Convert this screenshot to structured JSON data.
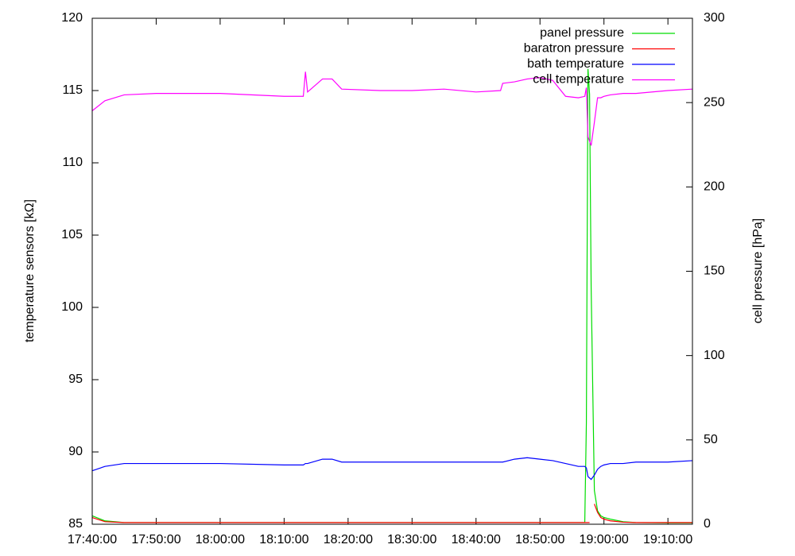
{
  "chart_data": {
    "type": "line",
    "y_label": "temperature sensors [kΩ]",
    "y2_label": "cell pressure [hPa]",
    "x": [
      "17:40:00",
      "17:42:00",
      "17:45:00",
      "17:50:00",
      "18:00:00",
      "18:10:00",
      "18:13:00",
      "18:13:20",
      "18:13:40",
      "18:16:00",
      "18:17:30",
      "18:19:00",
      "18:25:00",
      "18:30:00",
      "18:35:00",
      "18:40:00",
      "18:43:50",
      "18:44:10",
      "18:46:00",
      "18:48:00",
      "18:50:00",
      "18:52:00",
      "18:54:00",
      "18:56:00",
      "18:57:00",
      "18:57:15",
      "18:57:30",
      "18:57:45",
      "18:58:00",
      "18:58:30",
      "18:59:00",
      "18:59:30",
      "19:00:00",
      "19:01:00",
      "19:03:00",
      "19:05:00",
      "19:10:00",
      "19:13:50"
    ],
    "xlim": [
      "17:40:00",
      "19:13:50"
    ],
    "xticks": [
      "17:40:00",
      "17:50:00",
      "18:00:00",
      "18:10:00",
      "18:20:00",
      "18:30:00",
      "18:40:00",
      "18:50:00",
      "19:00:00",
      "19:10:00"
    ],
    "ylim": [
      85,
      120
    ],
    "yticks": [
      85,
      90,
      95,
      100,
      105,
      110,
      115,
      120
    ],
    "y2lim": [
      0,
      300
    ],
    "y2ticks": [
      0,
      50,
      100,
      150,
      200,
      250,
      300
    ],
    "legend": "top-right",
    "series": [
      {
        "name": "panel pressure",
        "color": "#00dd00",
        "axis": "y2",
        "values": [
          5,
          2,
          1,
          1,
          1,
          1,
          1,
          1,
          1,
          1,
          1,
          1,
          1,
          1,
          1,
          1,
          1,
          1,
          1,
          1,
          1,
          1,
          1,
          1,
          1,
          60,
          270,
          255,
          140,
          20,
          8,
          5,
          4,
          3,
          1.5,
          1,
          0.8,
          0.8
        ]
      },
      {
        "name": "baratron pressure",
        "color": "#ff0000",
        "axis": "y2",
        "values": [
          4,
          1.5,
          1,
          1,
          1,
          1,
          1,
          1,
          1,
          1,
          1,
          1,
          1,
          1,
          1,
          1,
          1,
          1,
          1,
          1,
          1,
          1,
          1,
          1,
          1,
          1,
          1,
          1,
          null,
          12,
          7,
          4,
          3,
          2,
          1.2,
          1,
          1,
          1
        ]
      },
      {
        "name": "bath temperature",
        "color": "#0000ff",
        "values": [
          88.7,
          89.0,
          89.2,
          89.2,
          89.2,
          89.1,
          89.1,
          89.2,
          89.2,
          89.5,
          89.5,
          89.3,
          89.3,
          89.3,
          89.3,
          89.3,
          89.3,
          89.3,
          89.5,
          89.6,
          89.5,
          89.4,
          89.2,
          89.0,
          89.0,
          88.9,
          88.3,
          88.2,
          88.1,
          88.4,
          88.8,
          89.0,
          89.1,
          89.2,
          89.2,
          89.3,
          89.3,
          89.4
        ]
      },
      {
        "name": "cell temperature",
        "color": "#ff00ff",
        "values": [
          113.6,
          114.3,
          114.7,
          114.8,
          114.8,
          114.6,
          114.6,
          116.3,
          114.9,
          115.8,
          115.8,
          115.1,
          115.0,
          115.0,
          115.1,
          114.9,
          115.0,
          115.5,
          115.6,
          115.8,
          115.9,
          115.7,
          114.6,
          114.5,
          114.6,
          115.2,
          111.8,
          111.5,
          111.2,
          112.8,
          114.5,
          114.5,
          114.6,
          114.7,
          114.8,
          114.8,
          115.0,
          115.1
        ]
      }
    ]
  }
}
